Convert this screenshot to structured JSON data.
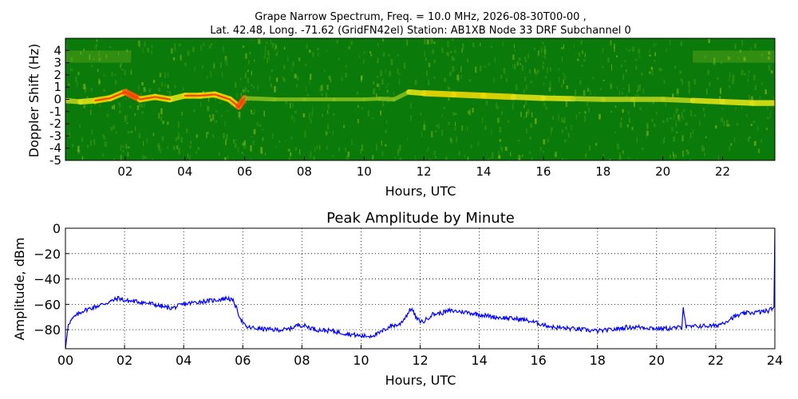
{
  "figure": {
    "title_line1": "Grape Narrow Spectrum, Freq. = 10.0 MHz, 2026-08-30T00-00 ,",
    "title_line2": "Lat.  42.48, Long. -71.62 (GridFN42el) Station: AB1XB Node 33 DRF Subchannel 0"
  },
  "chart_data": [
    {
      "type": "heatmap",
      "xlabel": "Hours, UTC",
      "ylabel": "Doppler Shift (Hz)",
      "xlim": [
        0,
        23.75
      ],
      "ylim": [
        -5,
        5
      ],
      "xticks": [
        "02",
        "04",
        "06",
        "08",
        "10",
        "12",
        "14",
        "16",
        "18",
        "20",
        "22"
      ],
      "xtick_values": [
        2,
        4,
        6,
        8,
        10,
        12,
        14,
        16,
        18,
        20,
        22
      ],
      "yticks": [
        "4",
        "3",
        "2",
        "1",
        "0",
        "-1",
        "-2",
        "-3",
        "-4",
        "-5"
      ],
      "ytick_values": [
        4,
        3,
        2,
        1,
        0,
        -1,
        -2,
        -3,
        -4,
        -5
      ],
      "background_color": "#0a7a0a",
      "signal_trace": {
        "x": [
          0.0,
          0.5,
          1.0,
          1.5,
          2.0,
          2.5,
          3.0,
          3.5,
          4.0,
          4.5,
          5.0,
          5.5,
          5.8,
          6.0,
          7.0,
          8.0,
          9.0,
          10.0,
          10.5,
          11.0,
          11.5,
          12.0,
          13.0,
          14.0,
          15.0,
          16.0,
          17.0,
          18.0,
          19.0,
          20.0,
          21.0,
          22.0,
          23.0,
          23.75
        ],
        "y": [
          -0.1,
          -0.2,
          -0.1,
          0.1,
          0.6,
          0.0,
          0.2,
          0.0,
          0.3,
          0.3,
          0.4,
          0.0,
          -0.6,
          0.1,
          0.0,
          0.0,
          0.0,
          0.0,
          0.05,
          0.0,
          0.6,
          0.5,
          0.4,
          0.3,
          0.2,
          0.1,
          0.05,
          0.0,
          0.0,
          0.0,
          -0.1,
          -0.2,
          -0.3,
          -0.3
        ],
        "intensity": [
          0.6,
          0.8,
          0.9,
          0.9,
          1.0,
          0.9,
          0.9,
          0.8,
          0.9,
          0.9,
          0.9,
          0.9,
          1.0,
          0.3,
          0.2,
          0.2,
          0.2,
          0.2,
          0.3,
          0.3,
          0.7,
          0.9,
          0.9,
          0.9,
          0.8,
          0.7,
          0.6,
          0.6,
          0.6,
          0.6,
          0.7,
          0.8,
          0.8,
          0.8
        ]
      }
    },
    {
      "type": "line",
      "title": "Peak Amplitude by Minute",
      "xlabel": "Hours, UTC",
      "ylabel": "Amplitude, dBm",
      "xlim": [
        0,
        24
      ],
      "ylim": [
        -95,
        0
      ],
      "grid": true,
      "xticks": [
        "00",
        "02",
        "04",
        "06",
        "08",
        "10",
        "12",
        "14",
        "16",
        "18",
        "20",
        "22",
        "24"
      ],
      "xtick_values": [
        0,
        2,
        4,
        6,
        8,
        10,
        12,
        14,
        16,
        18,
        20,
        22,
        24
      ],
      "yticks": [
        "0",
        "−20",
        "−40",
        "−60",
        "−80"
      ],
      "ytick_values": [
        0,
        -20,
        -40,
        -60,
        -80
      ],
      "line_color": "#0000ff",
      "series": [
        {
          "x": [
            0.0,
            0.1,
            0.3,
            0.6,
            1.0,
            1.5,
            1.8,
            2.0,
            2.5,
            3.0,
            3.3,
            3.6,
            4.0,
            4.5,
            5.0,
            5.5,
            5.7,
            5.9,
            6.1,
            6.5,
            7.0,
            7.5,
            7.9,
            8.1,
            8.5,
            9.0,
            9.5,
            10.0,
            10.3,
            10.6,
            11.0,
            11.3,
            11.5,
            11.7,
            11.9,
            12.1,
            12.4,
            12.7,
            13.0,
            13.5,
            14.0,
            14.5,
            15.0,
            15.5,
            16.0,
            16.5,
            17.0,
            17.5,
            18.0,
            18.5,
            19.0,
            19.5,
            20.0,
            20.5,
            20.85,
            20.9,
            21.0,
            21.5,
            22.0,
            22.3,
            22.6,
            23.0,
            23.5,
            23.8,
            23.97,
            24.0
          ],
          "y": [
            -95,
            -75,
            -70,
            -65,
            -62,
            -58,
            -55,
            -57,
            -58,
            -60,
            -62,
            -63,
            -60,
            -58,
            -57,
            -55,
            -58,
            -70,
            -78,
            -79,
            -80,
            -80,
            -76,
            -77,
            -80,
            -81,
            -83,
            -85,
            -85,
            -83,
            -77,
            -76,
            -70,
            -63,
            -72,
            -74,
            -68,
            -67,
            -65,
            -66,
            -68,
            -70,
            -71,
            -72,
            -75,
            -78,
            -79,
            -80,
            -81,
            -80,
            -78,
            -78,
            -79,
            -79,
            -78,
            -62,
            -78,
            -77,
            -77,
            -74,
            -70,
            -67,
            -66,
            -65,
            -62,
            0
          ]
        }
      ]
    }
  ]
}
